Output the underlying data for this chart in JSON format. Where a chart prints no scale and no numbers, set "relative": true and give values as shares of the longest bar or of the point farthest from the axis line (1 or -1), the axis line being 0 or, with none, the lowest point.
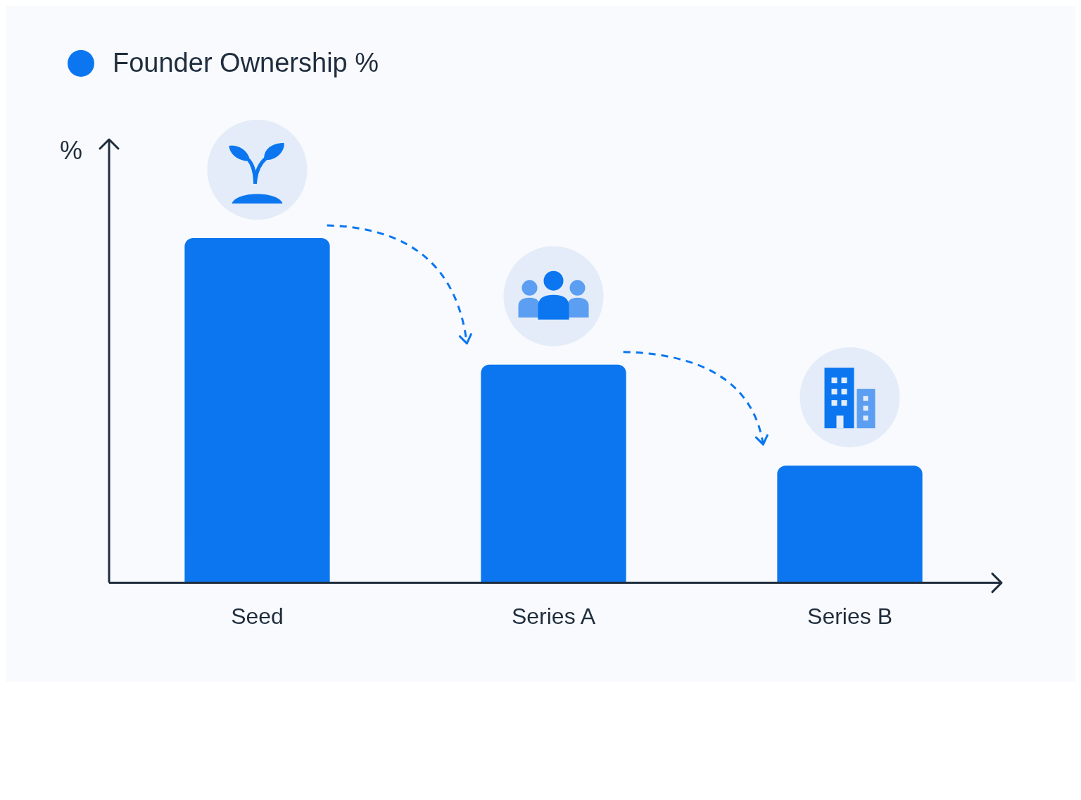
{
  "chart_data": {
    "type": "bar",
    "categories": [
      "Seed",
      "Series A",
      "Series B"
    ],
    "relative": true,
    "ylabel": "%",
    "legend": "top left",
    "grid": false,
    "series": [
      {
        "name": "Founder Ownership %",
        "color": "#0b76f0",
        "values": [
          1,
          0.633,
          0.34
        ]
      }
    ]
  }
}
